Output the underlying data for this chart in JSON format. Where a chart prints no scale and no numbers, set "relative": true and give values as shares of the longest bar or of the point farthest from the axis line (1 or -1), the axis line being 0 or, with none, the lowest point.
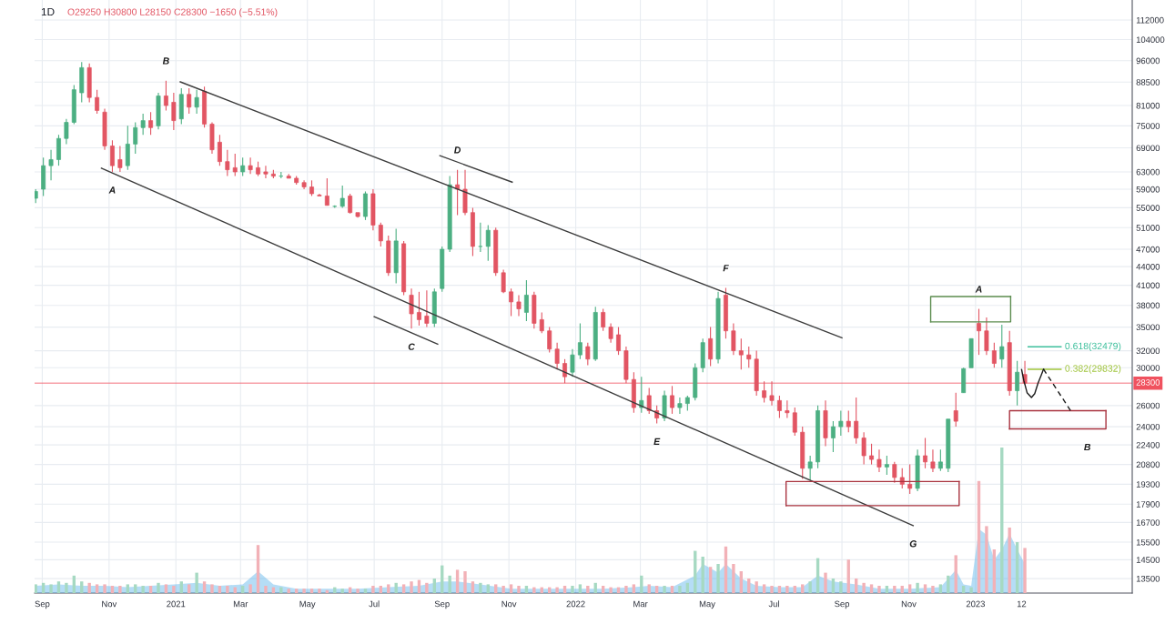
{
  "chart_data": [
    {
      "type": "candlestick",
      "title": "1D",
      "subtitle": "O29250 H30800 L28150 C28300 −1650 (−5.51%)",
      "x": [
        "2020-08-26",
        "2020-09-02",
        "2020-09-09",
        "2020-09-16",
        "2020-09-23",
        "2020-09-30",
        "2020-10-07",
        "2020-10-14",
        "2020-10-21",
        "2020-10-28",
        "2020-11-04",
        "2020-11-11",
        "2020-11-18",
        "2020-11-25",
        "2020-12-02",
        "2020-12-09",
        "2020-12-16",
        "2020-12-23",
        "2020-12-30",
        "2021-01-06",
        "2021-01-13",
        "2021-01-20",
        "2021-01-27",
        "2021-02-03",
        "2021-02-10",
        "2021-02-17",
        "2021-02-24",
        "2021-03-03",
        "2021-03-10",
        "2021-03-17",
        "2021-03-24",
        "2021-03-31",
        "2021-04-07",
        "2021-04-14",
        "2021-04-21",
        "2021-04-28",
        "2021-05-05",
        "2021-05-12",
        "2021-05-19",
        "2021-05-26",
        "2021-06-02",
        "2021-06-09",
        "2021-06-16",
        "2021-06-23",
        "2021-06-30",
        "2021-07-07",
        "2021-07-14",
        "2021-07-21",
        "2021-07-28",
        "2021-08-04",
        "2021-08-11",
        "2021-08-18",
        "2021-08-25",
        "2021-09-01",
        "2021-09-08",
        "2021-09-15",
        "2021-09-22",
        "2021-09-29",
        "2021-10-06",
        "2021-10-13",
        "2021-10-20",
        "2021-10-27",
        "2021-11-03",
        "2021-11-10",
        "2021-11-17",
        "2021-11-24",
        "2021-12-01",
        "2021-12-08",
        "2021-12-15",
        "2021-12-22",
        "2021-12-29",
        "2022-01-05",
        "2022-01-12",
        "2022-01-19",
        "2022-01-26",
        "2022-02-02",
        "2022-02-09",
        "2022-02-16",
        "2022-02-23",
        "2022-03-02",
        "2022-03-09",
        "2022-03-16",
        "2022-03-23",
        "2022-03-30",
        "2022-04-06",
        "2022-04-13",
        "2022-04-20",
        "2022-04-27",
        "2022-05-04",
        "2022-05-11",
        "2022-05-18",
        "2022-05-25",
        "2022-06-01",
        "2022-06-08",
        "2022-06-15",
        "2022-06-22",
        "2022-06-29",
        "2022-07-06",
        "2022-07-13",
        "2022-07-20",
        "2022-07-27",
        "2022-08-03",
        "2022-08-10",
        "2022-08-17",
        "2022-08-24",
        "2022-08-31",
        "2022-09-07",
        "2022-09-14",
        "2022-09-21",
        "2022-09-28",
        "2022-10-05",
        "2022-10-12",
        "2022-10-19",
        "2022-10-26",
        "2022-11-02",
        "2022-11-09",
        "2022-11-16",
        "2022-11-23",
        "2022-11-30",
        "2022-12-07",
        "2022-12-14",
        "2022-12-21",
        "2022-12-28",
        "2023-01-04",
        "2023-01-11",
        "2023-01-18",
        "2023-01-25",
        "2023-02-01",
        "2023-02-08",
        "2023-02-15"
      ],
      "ohlc": [
        [
          57000,
          59000,
          56000,
          58500
        ],
        [
          59000,
          66500,
          57500,
          64500
        ],
        [
          64500,
          68500,
          61000,
          66000
        ],
        [
          66000,
          72500,
          64500,
          71500
        ],
        [
          71500,
          77000,
          70000,
          76000
        ],
        [
          76000,
          87500,
          75500,
          86000
        ],
        [
          85000,
          95500,
          82000,
          93500
        ],
        [
          93500,
          95000,
          82000,
          83500
        ],
        [
          83500,
          86000,
          78500,
          79500
        ],
        [
          79000,
          80000,
          68500,
          69500
        ],
        [
          69500,
          71000,
          63000,
          64500
        ],
        [
          66000,
          69500,
          63000,
          64000
        ],
        [
          64500,
          75000,
          63500,
          70000
        ],
        [
          70000,
          76000,
          67500,
          74500
        ],
        [
          74500,
          78500,
          72500,
          76500
        ],
        [
          76500,
          79000,
          72500,
          74500
        ],
        [
          75000,
          85000,
          74000,
          84000
        ],
        [
          84000,
          89000,
          79500,
          81000
        ],
        [
          82000,
          85000,
          73800,
          76500
        ],
        [
          77000,
          86500,
          75500,
          84500
        ],
        [
          84500,
          86500,
          78500,
          80500
        ],
        [
          80500,
          86000,
          78500,
          83500
        ],
        [
          85500,
          87000,
          74500,
          75500
        ],
        [
          75500,
          76000,
          67500,
          68500
        ],
        [
          70500,
          72500,
          64500,
          65500
        ],
        [
          65500,
          68500,
          62000,
          63500
        ],
        [
          64000,
          67500,
          62000,
          63000
        ],
        [
          63000,
          66500,
          62000,
          64500
        ],
        [
          64500,
          66500,
          62500,
          63500
        ],
        [
          64000,
          65500,
          62000,
          62500
        ],
        [
          63000,
          64500,
          61500,
          62500
        ],
        [
          62500,
          63500,
          61500,
          62000
        ],
        [
          62000,
          63000,
          61500,
          62000
        ],
        [
          62000,
          62500,
          61500,
          61500
        ],
        [
          61500,
          62000,
          60000,
          60500
        ],
        [
          60500,
          61000,
          59000,
          59500
        ],
        [
          59500,
          61000,
          57500,
          58000
        ],
        [
          57700,
          58000,
          57500,
          57500
        ],
        [
          57500,
          61500,
          55500,
          55500
        ],
        [
          55300,
          55500,
          55000,
          55300
        ],
        [
          55300,
          59800,
          55000,
          57000
        ],
        [
          57500,
          58000,
          53800,
          54000
        ],
        [
          54000,
          54000,
          53000,
          53200
        ],
        [
          53200,
          58500,
          52500,
          58000
        ],
        [
          58000,
          59000,
          50500,
          51500
        ],
        [
          51500,
          52000,
          47500,
          48500
        ],
        [
          48500,
          49500,
          42500,
          43000
        ],
        [
          43000,
          50800,
          41300,
          48500
        ],
        [
          48000,
          48500,
          39500,
          40000
        ],
        [
          39500,
          40500,
          34800,
          36800
        ],
        [
          37000,
          40000,
          35200,
          36000
        ],
        [
          36500,
          40200,
          35000,
          35500
        ],
        [
          35500,
          40500,
          35000,
          40000
        ],
        [
          40500,
          47500,
          40000,
          47000
        ],
        [
          47000,
          62000,
          46500,
          60000
        ],
        [
          60000,
          63500,
          53500,
          59000
        ],
        [
          59000,
          63500,
          53500,
          54000
        ],
        [
          54000,
          55000,
          45800,
          47500
        ],
        [
          47500,
          52000,
          46500,
          47500
        ],
        [
          47500,
          51500,
          45000,
          50500
        ],
        [
          50500,
          51000,
          42500,
          43000
        ],
        [
          43000,
          43500,
          39800,
          40000
        ],
        [
          40000,
          40500,
          36500,
          38500
        ],
        [
          38500,
          39500,
          36500,
          37500
        ],
        [
          37000,
          41800,
          35800,
          39500
        ],
        [
          39500,
          40000,
          34800,
          35500
        ],
        [
          36000,
          37000,
          34200,
          34500
        ],
        [
          34500,
          35000,
          31800,
          32200
        ],
        [
          32200,
          33000,
          29800,
          30500
        ],
        [
          30500,
          31000,
          28300,
          29000
        ],
        [
          29500,
          32200,
          29000,
          31500
        ],
        [
          31500,
          35500,
          31000,
          33000
        ],
        [
          32500,
          33000,
          30300,
          31000
        ],
        [
          31000,
          37800,
          30800,
          37000
        ],
        [
          37000,
          37500,
          34500,
          35000
        ],
        [
          35000,
          35500,
          33000,
          33500
        ],
        [
          34000,
          35000,
          31500,
          32000
        ],
        [
          32000,
          32500,
          28300,
          28700
        ],
        [
          28700,
          29500,
          25300,
          25800
        ],
        [
          25800,
          29000,
          25300,
          26500
        ],
        [
          27000,
          27800,
          25200,
          25500
        ],
        [
          25500,
          26000,
          24300,
          24800
        ],
        [
          24800,
          27500,
          24500,
          27000
        ],
        [
          27000,
          28000,
          25200,
          25800
        ],
        [
          25800,
          26800,
          25200,
          26200
        ],
        [
          26200,
          27000,
          25500,
          26800
        ],
        [
          26800,
          30500,
          26500,
          30000
        ],
        [
          30000,
          33500,
          29500,
          33000
        ],
        [
          33500,
          35000,
          30200,
          31000
        ],
        [
          31000,
          40000,
          30500,
          39000
        ],
        [
          39500,
          40600,
          33500,
          34500
        ],
        [
          34500,
          35500,
          31500,
          32000
        ],
        [
          32000,
          33500,
          29800,
          31500
        ],
        [
          31500,
          32500,
          30000,
          31000
        ],
        [
          31000,
          32000,
          27000,
          27500
        ],
        [
          27500,
          28500,
          26300,
          26800
        ],
        [
          27000,
          28500,
          26000,
          26500
        ],
        [
          26500,
          27000,
          24800,
          25500
        ],
        [
          25500,
          26500,
          24800,
          25300
        ],
        [
          25300,
          25800,
          23200,
          23500
        ],
        [
          23500,
          24000,
          19700,
          20500
        ],
        [
          20500,
          21500,
          19600,
          21000
        ],
        [
          21000,
          26000,
          20500,
          25500
        ],
        [
          25500,
          26500,
          22300,
          23000
        ],
        [
          23000,
          24500,
          21800,
          24000
        ],
        [
          24000,
          25500,
          23200,
          24500
        ],
        [
          24500,
          25500,
          23500,
          24000
        ],
        [
          24500,
          26800,
          22500,
          23000
        ],
        [
          23000,
          23500,
          20800,
          21500
        ],
        [
          21500,
          22500,
          20800,
          21200
        ],
        [
          21200,
          22000,
          20200,
          20600
        ],
        [
          20600,
          21500,
          20000,
          20800
        ],
        [
          20800,
          21000,
          19400,
          19800
        ],
        [
          19800,
          20500,
          19000,
          19300
        ],
        [
          19300,
          20800,
          18600,
          19000
        ],
        [
          19000,
          22000,
          18800,
          21500
        ],
        [
          21500,
          23000,
          20500,
          21000
        ],
        [
          21000,
          22000,
          20200,
          20500
        ],
        [
          20500,
          22000,
          20300,
          21000
        ],
        [
          20500,
          24700,
          20200,
          24700
        ],
        [
          25500,
          27300,
          24000,
          24500
        ],
        [
          27300,
          30000,
          27300,
          29900
        ],
        [
          30000,
          33500,
          30000,
          33500
        ],
        [
          35500,
          37500,
          31500,
          34500
        ],
        [
          34500,
          36300,
          31500,
          32000
        ],
        [
          32000,
          33000,
          30000,
          30500
        ],
        [
          31000,
          35300,
          30000,
          32500
        ],
        [
          33000,
          34500,
          27000,
          27500
        ],
        [
          27500,
          30800,
          26000,
          29500
        ],
        [
          29250,
          30800,
          28150,
          28300
        ]
      ],
      "colors": [
        "#4caf82",
        "#4caf82",
        "#4caf82",
        "#4caf82",
        "#4caf82",
        "#4caf82",
        "#4caf82",
        "#e25563",
        "#e25563",
        "#e25563",
        "#e25563",
        "#e25563",
        "#4caf82",
        "#4caf82",
        "#4caf82",
        "#e25563",
        "#4caf82",
        "#e25563",
        "#e25563",
        "#4caf82",
        "#e25563",
        "#4caf82",
        "#e25563",
        "#e25563",
        "#e25563",
        "#e25563",
        "#e25563",
        "#4caf82",
        "#e25563",
        "#e25563",
        "#e25563",
        "#e25563",
        "#4caf82",
        "#e25563",
        "#e25563",
        "#e25563",
        "#e25563",
        "#e25563",
        "#e25563",
        "#4caf82",
        "#4caf82",
        "#e25563",
        "#e25563",
        "#4caf82",
        "#e25563",
        "#e25563",
        "#e25563",
        "#4caf82",
        "#e25563",
        "#e25563",
        "#e25563",
        "#e25563",
        "#4caf82",
        "#4caf82",
        "#4caf82",
        "#e25563",
        "#e25563",
        "#e25563",
        "#4caf82",
        "#4caf82",
        "#e25563",
        "#e25563",
        "#e25563",
        "#e25563",
        "#4caf82",
        "#e25563",
        "#e25563",
        "#e25563",
        "#e25563",
        "#e25563",
        "#4caf82",
        "#4caf82",
        "#e25563",
        "#4caf82",
        "#e25563",
        "#e25563",
        "#e25563",
        "#e25563",
        "#e25563",
        "#4caf82",
        "#e25563",
        "#e25563",
        "#4caf82",
        "#e25563",
        "#4caf82",
        "#4caf82",
        "#4caf82",
        "#4caf82",
        "#e25563",
        "#4caf82",
        "#e25563",
        "#e25563",
        "#e25563",
        "#e25563",
        "#e25563",
        "#e25563",
        "#e25563",
        "#e25563",
        "#e25563",
        "#e25563",
        "#e25563",
        "#4caf82",
        "#4caf82",
        "#e25563",
        "#4caf82",
        "#4caf82",
        "#e25563",
        "#e25563",
        "#e25563",
        "#e25563",
        "#e25563",
        "#4caf82",
        "#e25563",
        "#e25563",
        "#e25563",
        "#4caf82",
        "#e25563",
        "#e25563",
        "#4caf82",
        "#4caf82",
        "#e25563",
        "#4caf82",
        "#4caf82",
        "#e25563",
        "#e25563",
        "#e25563",
        "#4caf82",
        "#e25563",
        "#4caf82",
        "#e25563"
      ],
      "series": [
        {
          "type": "line",
          "x": [
            "2020-10-25",
            "2022-11-05"
          ],
          "values": [
            63900,
            16500
          ],
          "color": "#3c3c3c"
        },
        {
          "type": "line",
          "x": [
            "2021-01-05",
            "2022-09-01"
          ],
          "values": [
            88600,
            33600
          ],
          "color": "#3c3c3c"
        },
        {
          "type": "line",
          "x": [
            "2021-07-01",
            "2021-08-28"
          ],
          "values": [
            36400,
            32800
          ],
          "color": "#3c3c3c"
        },
        {
          "type": "line",
          "x": [
            "2021-08-30",
            "2021-11-04"
          ],
          "values": [
            67000,
            60600
          ],
          "color": "#3c3c3c"
        },
        {
          "type": "line",
          "x": [
            "2022-11-21",
            "2022-11-21",
            "2023-02-02"
          ],
          "values": [
            35700,
            39300,
            39300
          ],
          "color": "#5b8c4e"
        },
        {
          "type": "line",
          "x": [
            "2022-11-21",
            "2023-02-02",
            "2023-02-02"
          ],
          "values": [
            35700,
            35700,
            39300
          ],
          "color": "#5b8c4e"
        },
        {
          "type": "line",
          "x": [
            "2022-07-12",
            "2022-07-12",
            "2022-12-17"
          ],
          "values": [
            17800,
            19500,
            19500
          ],
          "color": "#a8323e"
        },
        {
          "type": "line",
          "x": [
            "2022-07-12",
            "2022-12-17",
            "2022-12-17"
          ],
          "values": [
            17800,
            17800,
            19500
          ],
          "color": "#a8323e"
        },
        {
          "type": "line",
          "x": [
            "2023-02-01",
            "2023-02-01",
            "2023-04-30"
          ],
          "values": [
            23800,
            25500,
            25500
          ],
          "color": "#a8323e"
        },
        {
          "type": "line",
          "x": [
            "2023-02-01",
            "2023-04-13",
            "2023-04-30",
            "2023-04-30"
          ],
          "values": [
            23800,
            23800,
            23800,
            25500
          ],
          "color": "#a8323e"
        },
        {
          "type": "line",
          "name": "0.618(32479)",
          "x": [
            "2023-02-18",
            "2023-03-20"
          ],
          "values": [
            32479,
            32479
          ],
          "color": "#3dbf9c"
        },
        {
          "type": "line",
          "name": "0.382(29832)",
          "x": [
            "2023-02-18",
            "2023-03-20"
          ],
          "values": [
            29832,
            29832
          ],
          "color": "#9fc43a"
        },
        {
          "type": "line",
          "x": [
            "2023-02-12",
            "2023-02-14",
            "2023-02-17",
            "2023-02-21",
            "2023-02-24",
            "2023-02-27",
            "2023-03-02",
            "2023-03-04"
          ],
          "values": [
            29800,
            28600,
            27300,
            26800,
            27200,
            28300,
            29200,
            29832
          ],
          "color": "#1a1a1a"
        },
        {
          "type": "line",
          "x": [
            "2023-03-04",
            "2023-03-30"
          ],
          "values": [
            29832,
            25300
          ],
          "color": "#1a1a1a",
          "line_style": "dashed"
        }
      ],
      "ref_lines": [
        {
          "axis": "y",
          "value": 28300,
          "label": "28300",
          "color": "#f0525f"
        }
      ],
      "annotations": [
        {
          "text": "A",
          "x": "2020-11-04",
          "y": 63000
        },
        {
          "text": "B",
          "x": "2020-12-23",
          "y": 89000
        },
        {
          "text": "C",
          "x": "2021-08-04",
          "y": 34800
        },
        {
          "text": "D",
          "x": "2021-09-15",
          "y": 63500
        },
        {
          "text": "E",
          "x": "2022-03-16",
          "y": 24300
        },
        {
          "text": "F",
          "x": "2022-05-18",
          "y": 40600
        },
        {
          "text": "G",
          "x": "2022-11-05",
          "y": 16500
        },
        {
          "text": "A",
          "x": "2023-01-04",
          "y": 37500
        },
        {
          "text": "B",
          "x": "2023-04-13",
          "y": 23800
        }
      ],
      "xlim": [
        "2020-08-25",
        "2023-05-24"
      ],
      "xticks": [
        {
          "value": "2020-09-01",
          "label": "Sep"
        },
        {
          "value": "2020-11-01",
          "label": "Nov"
        },
        {
          "value": "2021-01-01",
          "label": "2021"
        },
        {
          "value": "2021-03-01",
          "label": "Mar"
        },
        {
          "value": "2021-05-01",
          "label": "May"
        },
        {
          "value": "2021-07-01",
          "label": "Jul"
        },
        {
          "value": "2021-09-01",
          "label": "Sep"
        },
        {
          "value": "2021-11-01",
          "label": "Nov"
        },
        {
          "value": "2022-01-01",
          "label": "2022"
        },
        {
          "value": "2022-03-01",
          "label": "Mar"
        },
        {
          "value": "2022-05-01",
          "label": "May"
        },
        {
          "value": "2022-07-01",
          "label": "Jul"
        },
        {
          "value": "2022-09-01",
          "label": "Sep"
        },
        {
          "value": "2022-11-01",
          "label": "Nov"
        },
        {
          "value": "2023-01-01",
          "label": "2023"
        },
        {
          "value": "2023-02-12",
          "label": "12"
        }
      ],
      "ylim": [
        12780,
        120800
      ],
      "yticks": [
        13500,
        14500,
        15500,
        16700,
        17900,
        19300,
        20800,
        22400,
        24000,
        26000,
        30000,
        32000,
        35000,
        38000,
        41000,
        44000,
        47000,
        51000,
        55000,
        59000,
        63000,
        69000,
        75000,
        81000,
        88500,
        96000,
        104000,
        112000
      ],
      "log": true,
      "grid": true
    },
    {
      "type": "bar",
      "relative": true,
      "tick_labels": false,
      "xlim": [
        "2020-08-25",
        "2023-05-24"
      ],
      "x": [
        "2020-08-26",
        "2020-09-02",
        "2020-09-09",
        "2020-09-16",
        "2020-09-23",
        "2020-09-30",
        "2020-10-07",
        "2020-10-14",
        "2020-10-21",
        "2020-10-28",
        "2020-11-04",
        "2020-11-11",
        "2020-11-18",
        "2020-11-25",
        "2020-12-02",
        "2020-12-09",
        "2020-12-16",
        "2020-12-23",
        "2020-12-30",
        "2021-01-06",
        "2021-01-13",
        "2021-01-20",
        "2021-01-27",
        "2021-02-03",
        "2021-02-10",
        "2021-02-17",
        "2021-02-24",
        "2021-03-03",
        "2021-03-10",
        "2021-03-17",
        "2021-03-24",
        "2021-03-31",
        "2021-04-07",
        "2021-04-14",
        "2021-04-21",
        "2021-04-28",
        "2021-05-05",
        "2021-05-12",
        "2021-05-19",
        "2021-05-26",
        "2021-06-02",
        "2021-06-09",
        "2021-06-16",
        "2021-06-23",
        "2021-06-30",
        "2021-07-07",
        "2021-07-14",
        "2021-07-21",
        "2021-07-28",
        "2021-08-04",
        "2021-08-11",
        "2021-08-18",
        "2021-08-25",
        "2021-09-01",
        "2021-09-08",
        "2021-09-15",
        "2021-09-22",
        "2021-09-29",
        "2021-10-06",
        "2021-10-13",
        "2021-10-20",
        "2021-10-27",
        "2021-11-03",
        "2021-11-10",
        "2021-11-17",
        "2021-11-24",
        "2021-12-01",
        "2021-12-08",
        "2021-12-15",
        "2021-12-22",
        "2021-12-29",
        "2022-01-05",
        "2022-01-12",
        "2022-01-19",
        "2022-01-26",
        "2022-02-02",
        "2022-02-09",
        "2022-02-16",
        "2022-02-23",
        "2022-03-02",
        "2022-03-09",
        "2022-03-16",
        "2022-03-23",
        "2022-03-30",
        "2022-04-06",
        "2022-04-13",
        "2022-04-20",
        "2022-04-27",
        "2022-05-04",
        "2022-05-11",
        "2022-05-18",
        "2022-05-25",
        "2022-06-01",
        "2022-06-08",
        "2022-06-15",
        "2022-06-22",
        "2022-06-29",
        "2022-07-06",
        "2022-07-13",
        "2022-07-20",
        "2022-07-27",
        "2022-08-03",
        "2022-08-10",
        "2022-08-17",
        "2022-08-24",
        "2022-08-31",
        "2022-09-07",
        "2022-09-14",
        "2022-09-21",
        "2022-09-28",
        "2022-10-05",
        "2022-10-12",
        "2022-10-19",
        "2022-10-26",
        "2022-11-02",
        "2022-11-09",
        "2022-11-16",
        "2022-11-23",
        "2022-11-30",
        "2022-12-07",
        "2022-12-14",
        "2022-12-21",
        "2022-12-28",
        "2023-01-04",
        "2023-01-11",
        "2023-01-18",
        "2023-01-25",
        "2023-02-01",
        "2023-02-08",
        "2023-02-15"
      ],
      "series": [
        {
          "type": "bar",
          "values": [
            0.06,
            0.07,
            0.06,
            0.08,
            0.07,
            0.12,
            0.08,
            0.07,
            0.06,
            0.06,
            0.05,
            0.05,
            0.06,
            0.06,
            0.05,
            0.05,
            0.07,
            0.06,
            0.05,
            0.08,
            0.06,
            0.14,
            0.08,
            0.06,
            0.05,
            0.05,
            0.04,
            0.05,
            0.06,
            0.33,
            0.05,
            0.04,
            0.04,
            0.03,
            0.03,
            0.03,
            0.03,
            0.03,
            0.02,
            0.04,
            0.03,
            0.04,
            0.03,
            0.03,
            0.05,
            0.05,
            0.06,
            0.07,
            0.06,
            0.08,
            0.09,
            0.07,
            0.1,
            0.19,
            0.12,
            0.16,
            0.15,
            0.08,
            0.07,
            0.06,
            0.06,
            0.05,
            0.06,
            0.05,
            0.05,
            0.04,
            0.04,
            0.04,
            0.04,
            0.05,
            0.05,
            0.06,
            0.05,
            0.07,
            0.05,
            0.04,
            0.04,
            0.05,
            0.06,
            0.12,
            0.06,
            0.05,
            0.05,
            0.05,
            0.05,
            0.07,
            0.29,
            0.25,
            0.18,
            0.2,
            0.32,
            0.2,
            0.15,
            0.1,
            0.08,
            0.06,
            0.05,
            0.05,
            0.05,
            0.05,
            0.06,
            0.08,
            0.24,
            0.14,
            0.1,
            0.08,
            0.23,
            0.1,
            0.07,
            0.06,
            0.05,
            0.05,
            0.05,
            0.05,
            0.06,
            0.07,
            0.06,
            0.05,
            0.06,
            0.12,
            0.26,
            0.05,
            0.04,
            0.77,
            0.46,
            0.3,
            1,
            0.45,
            0.35,
            0.31
          ],
          "colors": [
            "#a6d9c2",
            "#a6d9c2",
            "#a6d9c2",
            "#a6d9c2",
            "#a6d9c2",
            "#a6d9c2",
            "#a6d9c2",
            "#f2b1b7",
            "#f2b1b7",
            "#f2b1b7",
            "#f2b1b7",
            "#f2b1b7",
            "#a6d9c2",
            "#a6d9c2",
            "#a6d9c2",
            "#f2b1b7",
            "#a6d9c2",
            "#f2b1b7",
            "#f2b1b7",
            "#a6d9c2",
            "#f2b1b7",
            "#a6d9c2",
            "#f2b1b7",
            "#f2b1b7",
            "#f2b1b7",
            "#f2b1b7",
            "#f2b1b7",
            "#a6d9c2",
            "#f2b1b7",
            "#f2b1b7",
            "#f2b1b7",
            "#f2b1b7",
            "#a6d9c2",
            "#f2b1b7",
            "#f2b1b7",
            "#f2b1b7",
            "#f2b1b7",
            "#f2b1b7",
            "#f2b1b7",
            "#a6d9c2",
            "#a6d9c2",
            "#f2b1b7",
            "#f2b1b7",
            "#a6d9c2",
            "#f2b1b7",
            "#f2b1b7",
            "#f2b1b7",
            "#a6d9c2",
            "#f2b1b7",
            "#f2b1b7",
            "#f2b1b7",
            "#f2b1b7",
            "#a6d9c2",
            "#a6d9c2",
            "#a6d9c2",
            "#f2b1b7",
            "#f2b1b7",
            "#f2b1b7",
            "#a6d9c2",
            "#a6d9c2",
            "#f2b1b7",
            "#f2b1b7",
            "#f2b1b7",
            "#f2b1b7",
            "#a6d9c2",
            "#f2b1b7",
            "#f2b1b7",
            "#f2b1b7",
            "#f2b1b7",
            "#f2b1b7",
            "#a6d9c2",
            "#a6d9c2",
            "#f2b1b7",
            "#a6d9c2",
            "#f2b1b7",
            "#f2b1b7",
            "#f2b1b7",
            "#f2b1b7",
            "#f2b1b7",
            "#a6d9c2",
            "#f2b1b7",
            "#f2b1b7",
            "#a6d9c2",
            "#f2b1b7",
            "#a6d9c2",
            "#a6d9c2",
            "#a6d9c2",
            "#a6d9c2",
            "#f2b1b7",
            "#a6d9c2",
            "#f2b1b7",
            "#f2b1b7",
            "#f2b1b7",
            "#f2b1b7",
            "#f2b1b7",
            "#f2b1b7",
            "#f2b1b7",
            "#f2b1b7",
            "#f2b1b7",
            "#f2b1b7",
            "#f2b1b7",
            "#a6d9c2",
            "#a6d9c2",
            "#f2b1b7",
            "#a6d9c2",
            "#a6d9c2",
            "#f2b1b7",
            "#f2b1b7",
            "#f2b1b7",
            "#f2b1b7",
            "#f2b1b7",
            "#a6d9c2",
            "#f2b1b7",
            "#f2b1b7",
            "#f2b1b7",
            "#a6d9c2",
            "#f2b1b7",
            "#f2b1b7",
            "#a6d9c2",
            "#a6d9c2",
            "#f2b1b7",
            "#a6d9c2",
            "#a6d9c2",
            "#f2b1b7",
            "#f2b1b7",
            "#f2b1b7",
            "#a6d9c2",
            "#f2b1b7",
            "#a6d9c2",
            "#f2b1b7"
          ]
        },
        {
          "type": "area",
          "color": "#5cb3ea",
          "x": [
            "2020-08-26",
            "2020-09-16",
            "2020-10-07",
            "2020-10-28",
            "2020-11-18",
            "2020-12-09",
            "2020-12-30",
            "2021-01-20",
            "2021-02-10",
            "2021-03-03",
            "2021-03-17",
            "2021-03-31",
            "2021-04-21",
            "2021-05-19",
            "2021-06-16",
            "2021-07-14",
            "2021-08-11",
            "2021-09-01",
            "2021-09-15",
            "2021-10-06",
            "2021-11-03",
            "2021-12-01",
            "2021-12-29",
            "2022-01-26",
            "2022-02-23",
            "2022-03-09",
            "2022-03-30",
            "2022-04-20",
            "2022-04-27",
            "2022-05-11",
            "2022-05-18",
            "2022-06-01",
            "2022-06-15",
            "2022-07-06",
            "2022-07-27",
            "2022-08-10",
            "2022-08-24",
            "2022-09-14",
            "2022-10-05",
            "2022-11-02",
            "2022-11-30",
            "2022-12-07",
            "2022-12-14",
            "2022-12-21",
            "2022-12-28",
            "2023-01-04",
            "2023-01-11",
            "2023-01-18",
            "2023-01-25",
            "2023-02-01",
            "2023-02-08",
            "2023-02-15"
          ],
          "values": [
            0.05,
            0.06,
            0.05,
            0.05,
            0.04,
            0.05,
            0.06,
            0.07,
            0.05,
            0.06,
            0.15,
            0.06,
            0.03,
            0.03,
            0.03,
            0.04,
            0.05,
            0.08,
            0.08,
            0.06,
            0.03,
            0.03,
            0.03,
            0.03,
            0.04,
            0.05,
            0.04,
            0.12,
            0.2,
            0.14,
            0.2,
            0.1,
            0.05,
            0.04,
            0.04,
            0.12,
            0.08,
            0.06,
            0.03,
            0.03,
            0.04,
            0.1,
            0.16,
            0.06,
            0.05,
            0.44,
            0.4,
            0.23,
            0.3,
            0.41,
            0.3,
            0.2
          ]
        }
      ]
    }
  ]
}
